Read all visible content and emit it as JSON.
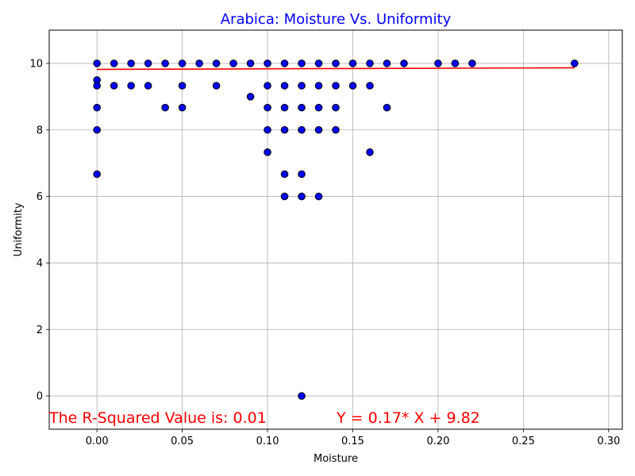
{
  "chart_data": {
    "type": "scatter",
    "title": "Arabica: Moisture Vs. Uniformity",
    "title_color": "#0000ff",
    "xlabel": "Moisture",
    "ylabel": "Uniformity",
    "xlim": [
      -0.028,
      0.308
    ],
    "ylim": [
      -1,
      11
    ],
    "x_ticks": [
      0.0,
      0.05,
      0.1,
      0.15,
      0.2,
      0.25,
      0.3
    ],
    "x_tick_labels": [
      "0.00",
      "0.05",
      "0.10",
      "0.15",
      "0.20",
      "0.25",
      "0.30"
    ],
    "y_ticks": [
      0,
      2,
      4,
      6,
      8,
      10
    ],
    "y_tick_labels": [
      "0",
      "2",
      "4",
      "6",
      "8",
      "10"
    ],
    "grid": true,
    "marker_color": "#0000ff",
    "marker_edge_color": "#000000",
    "points": [
      {
        "x": 0.0,
        "y": 10
      },
      {
        "x": 0.0,
        "y": 9.5
      },
      {
        "x": 0.0,
        "y": 9.33
      },
      {
        "x": 0.0,
        "y": 8.67
      },
      {
        "x": 0.0,
        "y": 8
      },
      {
        "x": 0.0,
        "y": 6.67
      },
      {
        "x": 0.01,
        "y": 10
      },
      {
        "x": 0.01,
        "y": 9.33
      },
      {
        "x": 0.02,
        "y": 10
      },
      {
        "x": 0.02,
        "y": 9.33
      },
      {
        "x": 0.03,
        "y": 10
      },
      {
        "x": 0.03,
        "y": 9.33
      },
      {
        "x": 0.04,
        "y": 10
      },
      {
        "x": 0.04,
        "y": 8.67
      },
      {
        "x": 0.05,
        "y": 10
      },
      {
        "x": 0.05,
        "y": 9.33
      },
      {
        "x": 0.05,
        "y": 8.67
      },
      {
        "x": 0.06,
        "y": 10
      },
      {
        "x": 0.07,
        "y": 10
      },
      {
        "x": 0.07,
        "y": 9.33
      },
      {
        "x": 0.08,
        "y": 10
      },
      {
        "x": 0.09,
        "y": 10
      },
      {
        "x": 0.09,
        "y": 9
      },
      {
        "x": 0.1,
        "y": 10
      },
      {
        "x": 0.1,
        "y": 9.33
      },
      {
        "x": 0.1,
        "y": 8.67
      },
      {
        "x": 0.1,
        "y": 8
      },
      {
        "x": 0.1,
        "y": 7.33
      },
      {
        "x": 0.11,
        "y": 10
      },
      {
        "x": 0.11,
        "y": 9.33
      },
      {
        "x": 0.11,
        "y": 8.67
      },
      {
        "x": 0.11,
        "y": 8
      },
      {
        "x": 0.11,
        "y": 6.67
      },
      {
        "x": 0.11,
        "y": 6
      },
      {
        "x": 0.12,
        "y": 10
      },
      {
        "x": 0.12,
        "y": 9.33
      },
      {
        "x": 0.12,
        "y": 8.67
      },
      {
        "x": 0.12,
        "y": 8
      },
      {
        "x": 0.12,
        "y": 6.67
      },
      {
        "x": 0.12,
        "y": 6
      },
      {
        "x": 0.12,
        "y": 0
      },
      {
        "x": 0.13,
        "y": 10
      },
      {
        "x": 0.13,
        "y": 9.33
      },
      {
        "x": 0.13,
        "y": 8.67
      },
      {
        "x": 0.13,
        "y": 8
      },
      {
        "x": 0.13,
        "y": 6
      },
      {
        "x": 0.14,
        "y": 10
      },
      {
        "x": 0.14,
        "y": 9.33
      },
      {
        "x": 0.14,
        "y": 8.67
      },
      {
        "x": 0.14,
        "y": 8
      },
      {
        "x": 0.15,
        "y": 10
      },
      {
        "x": 0.15,
        "y": 9.33
      },
      {
        "x": 0.16,
        "y": 10
      },
      {
        "x": 0.16,
        "y": 9.33
      },
      {
        "x": 0.16,
        "y": 7.33
      },
      {
        "x": 0.17,
        "y": 10
      },
      {
        "x": 0.17,
        "y": 8.67
      },
      {
        "x": 0.18,
        "y": 10
      },
      {
        "x": 0.2,
        "y": 10
      },
      {
        "x": 0.21,
        "y": 10
      },
      {
        "x": 0.22,
        "y": 10
      },
      {
        "x": 0.28,
        "y": 10
      }
    ],
    "regression": {
      "slope": 0.17,
      "intercept": 9.82,
      "x_range": [
        0.0,
        0.28
      ],
      "color": "#ff0000"
    },
    "annotations": {
      "r_squared_text": "The R-Squared Value is: 0.01",
      "equation_text": "Y = 0.17* X + 9.82",
      "color": "#ff0000"
    }
  }
}
